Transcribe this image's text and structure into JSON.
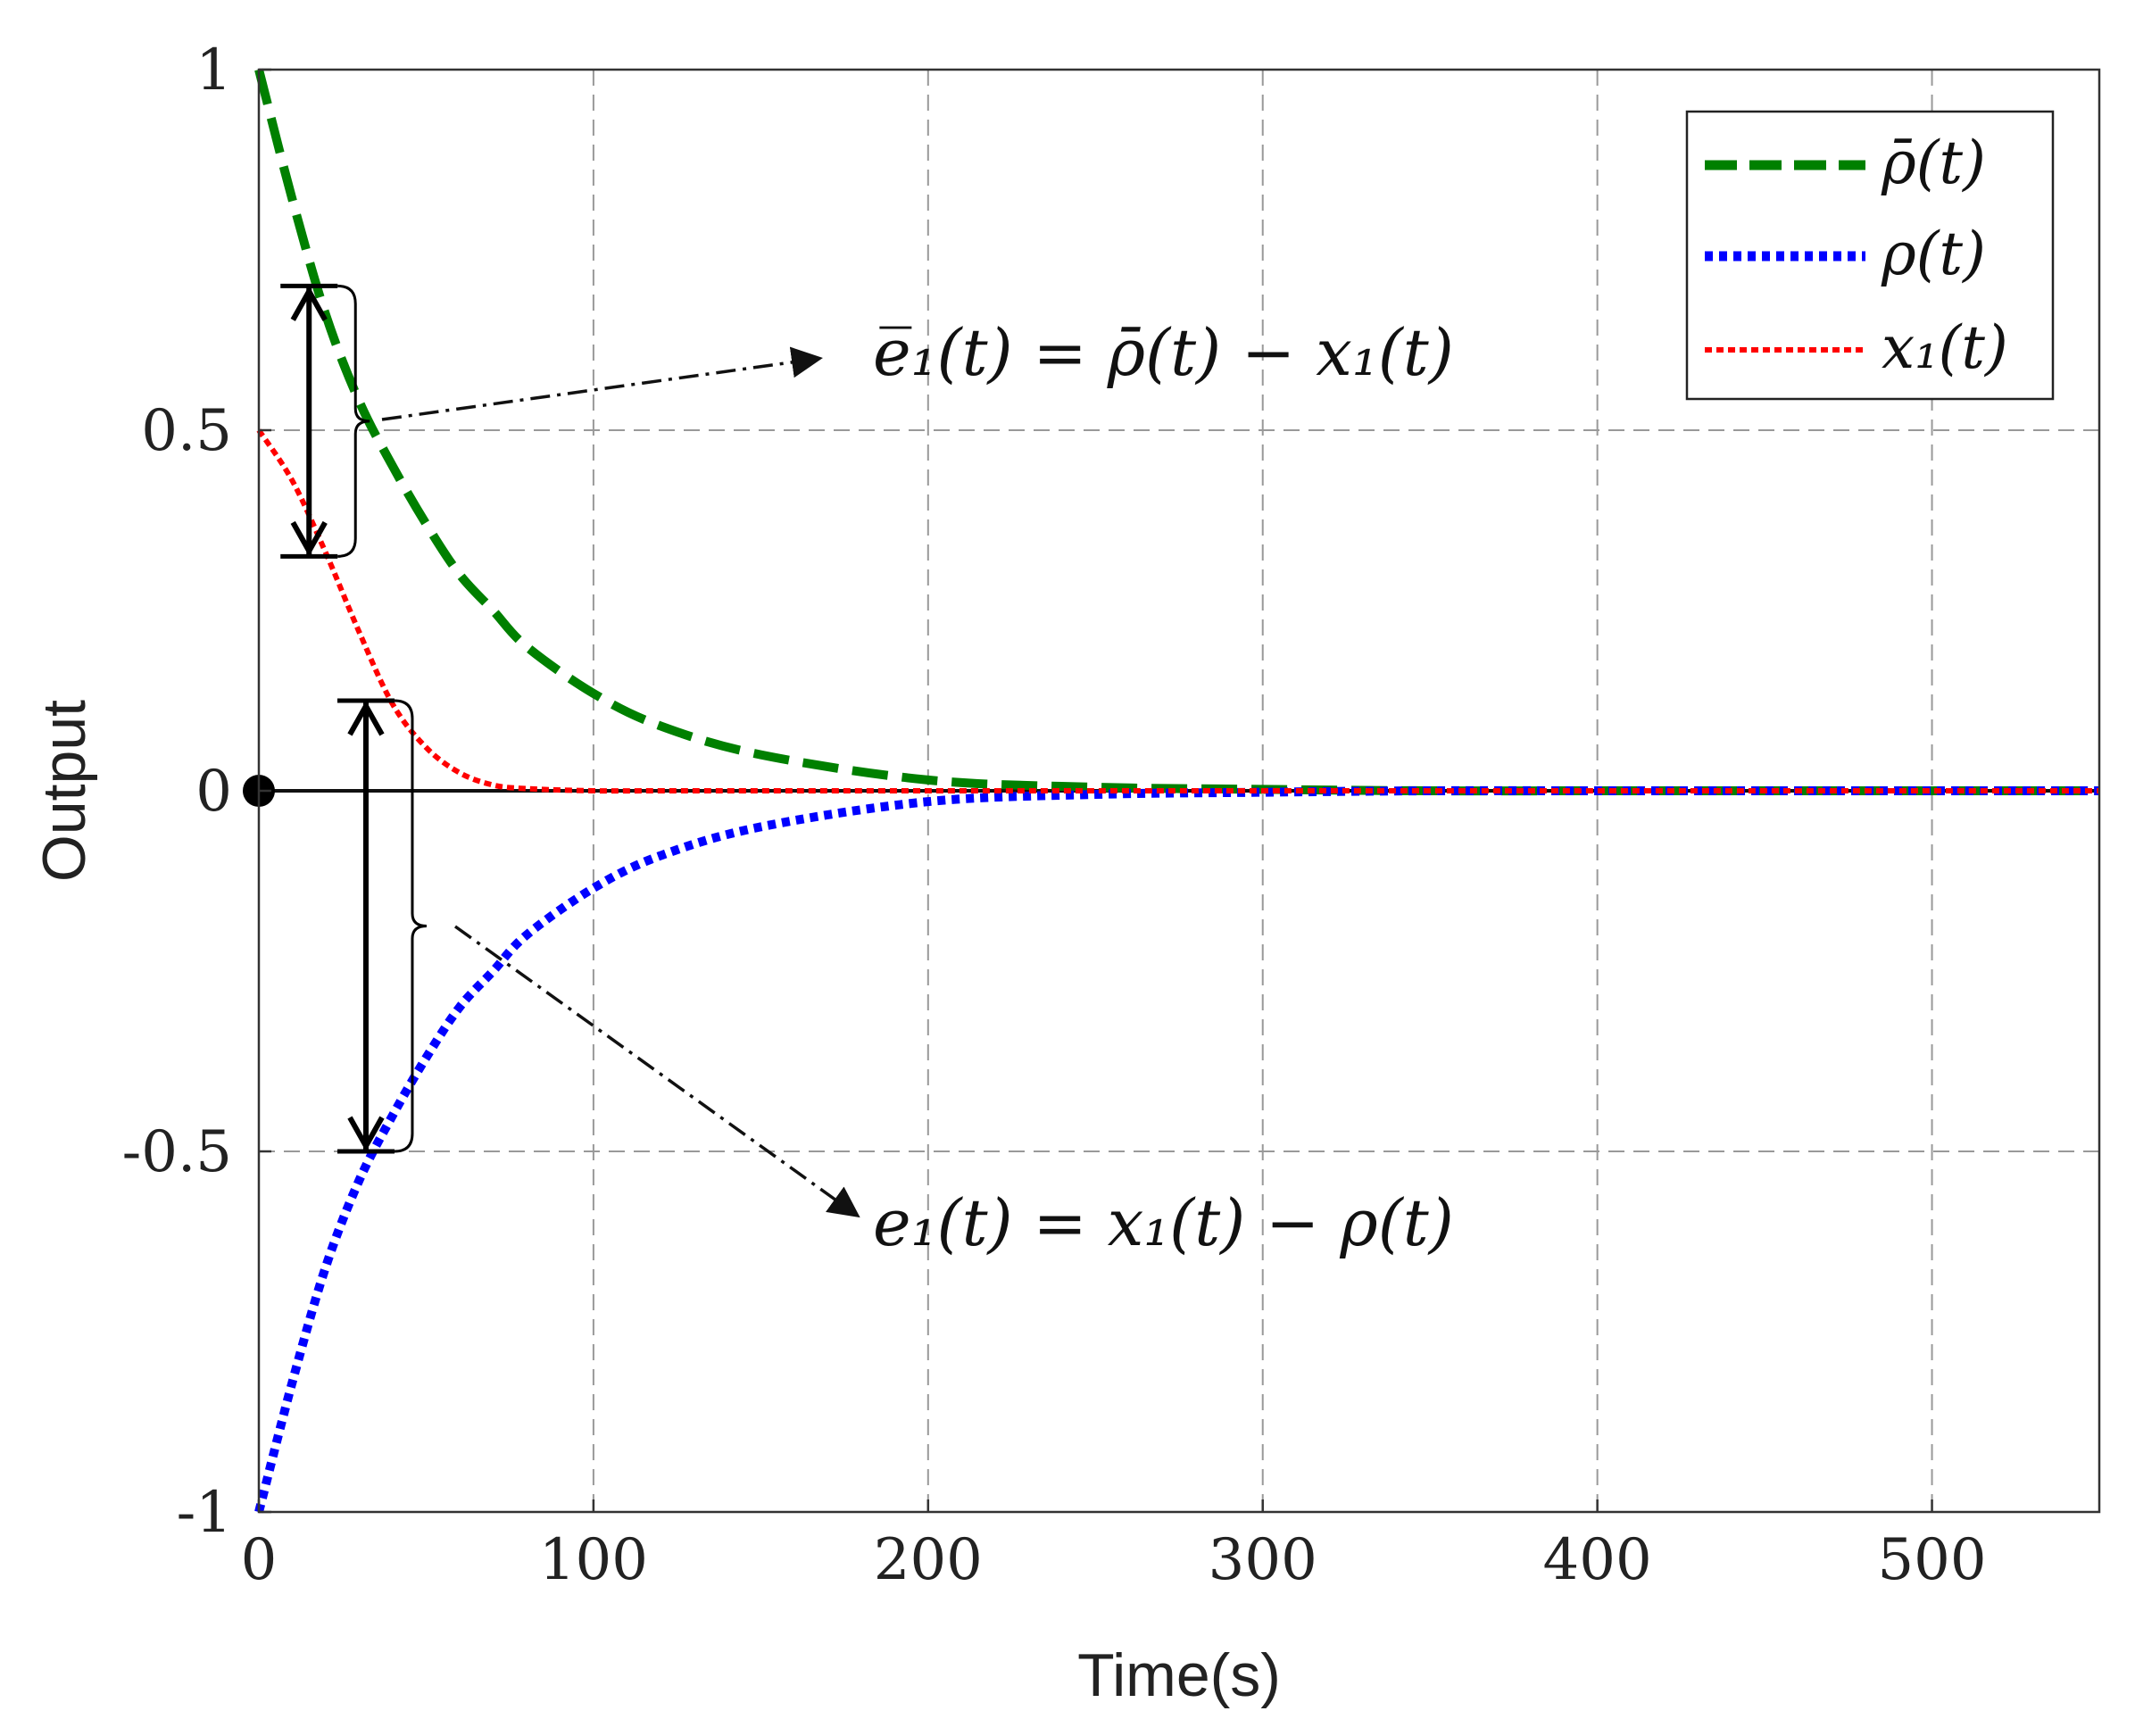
{
  "chart_data": {
    "type": "line",
    "xlabel": "Time(s)",
    "ylabel": "Output",
    "xlim": [
      0,
      550
    ],
    "ylim": [
      -1,
      1
    ],
    "xticks": [
      0,
      100,
      200,
      300,
      400,
      500
    ],
    "xtick_labels": [
      "0",
      "100",
      "200",
      "300",
      "400",
      "500"
    ],
    "yticks": [
      -1,
      -0.5,
      0,
      0.5,
      1
    ],
    "ytick_labels": [
      "-1",
      "-0.5",
      "0",
      "0.5",
      "1"
    ],
    "grid": true,
    "legend_position": "top-right",
    "x": [
      0,
      10,
      20,
      30,
      40,
      50,
      60,
      70,
      80,
      100,
      120,
      150,
      200,
      250,
      300,
      350,
      400,
      450,
      500,
      550
    ],
    "series": [
      {
        "name": "ρ̄(t)",
        "color": "#008000",
        "style": "dashed",
        "values": [
          1.0,
          0.82,
          0.66,
          0.54,
          0.45,
          0.37,
          0.3,
          0.25,
          0.2,
          0.135,
          0.09,
          0.05,
          0.015,
          0.005,
          0.002,
          0.0,
          0.0,
          0.0,
          0.0,
          0.0
        ]
      },
      {
        "name": "ρ(t)",
        "color": "#0000ff",
        "style": "dotted",
        "values": [
          -1.0,
          -0.82,
          -0.66,
          -0.54,
          -0.45,
          -0.37,
          -0.3,
          -0.25,
          -0.2,
          -0.135,
          -0.09,
          -0.05,
          -0.015,
          -0.005,
          -0.002,
          0.0,
          0.0,
          0.0,
          0.0,
          0.0
        ]
      },
      {
        "name": "x₁(t)",
        "color": "#ff0000",
        "style": "dotted",
        "values": [
          0.5,
          0.43,
          0.33,
          0.22,
          0.12,
          0.06,
          0.025,
          0.008,
          0.003,
          0.0,
          0.0,
          0.0,
          0.0,
          0.0,
          0.0,
          0.0,
          0.0,
          0.0,
          0.0,
          0.0
        ]
      }
    ],
    "annotations": {
      "upper": "e̅₁(t) = ρ̄(t) − x₁(t)",
      "lower": "e₁(t) = x₁(t) − ρ(t)"
    }
  }
}
